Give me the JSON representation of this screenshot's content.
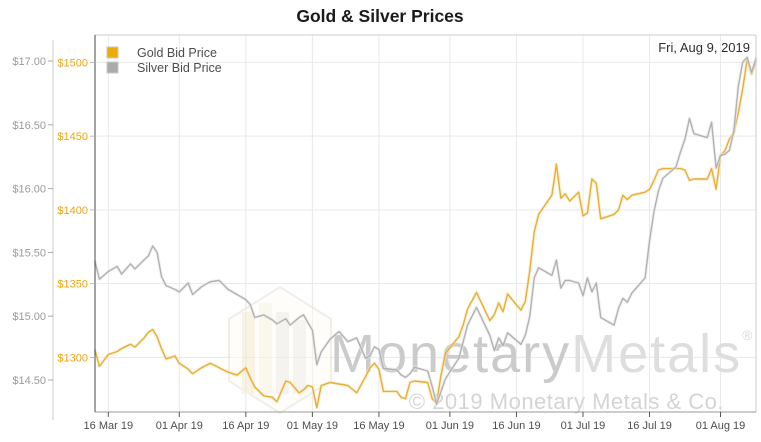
{
  "title": "Gold & Silver Prices",
  "date_label": "Fri, Aug 9, 2019",
  "legend": {
    "items": [
      {
        "label": "Gold Bid Price",
        "color": "#EDAB07"
      },
      {
        "label": "Silver Bid Price",
        "color": "#ABABAB"
      }
    ]
  },
  "watermark": {
    "brand_a": "Monetary",
    "brand_b": "Metals",
    "registered": "®",
    "copyright": "© 2019 Monetary Metals & Co.",
    "logo": "hexagon-ingot-mark"
  },
  "chart_data": {
    "type": "line",
    "title": "Gold & Silver Prices",
    "annotation": "Fri, Aug 9, 2019",
    "grid": {
      "horizontal": "gold-ticks",
      "vertical": "x-ticks",
      "color": "#e9e9e9"
    },
    "x_axis": {
      "unit": "days since 13 Mar 2019",
      "min": 0,
      "max": 149,
      "label_color": "#4d4d4d",
      "ticks": [
        {
          "day": 3,
          "label": "16 Mar 19"
        },
        {
          "day": 19,
          "label": "01 Apr 19"
        },
        {
          "day": 34,
          "label": "16 Apr 19"
        },
        {
          "day": 49,
          "label": "01 May 19"
        },
        {
          "day": 64,
          "label": "16 May 19"
        },
        {
          "day": 80,
          "label": "01 Jun 19"
        },
        {
          "day": 95,
          "label": "16 Jun 19"
        },
        {
          "day": 110,
          "label": "01 Jul 19"
        },
        {
          "day": 125,
          "label": "16 Jul 19"
        },
        {
          "day": 141,
          "label": "01 Aug 19"
        }
      ]
    },
    "gold_axis": {
      "side": "left-inner",
      "currency": "USD/oz",
      "min": 1263,
      "max": 1518.6,
      "label_color": "#EDA512",
      "ticks": [
        {
          "value": 1300,
          "label": "$1300"
        },
        {
          "value": 1350,
          "label": "$1350"
        },
        {
          "value": 1400,
          "label": "$1400"
        },
        {
          "value": 1450,
          "label": "$1450"
        },
        {
          "value": 1500,
          "label": "$1500"
        }
      ]
    },
    "silver_axis": {
      "side": "left-outer",
      "currency": "USD/oz",
      "min": 14.249,
      "max": 17.204,
      "label_color": "#9B9B9B",
      "ticks": [
        {
          "value": 14.5,
          "label": "$14.50"
        },
        {
          "value": 15.0,
          "label": "$15.00"
        },
        {
          "value": 15.5,
          "label": "$15.50"
        },
        {
          "value": 16.0,
          "label": "$16.00"
        },
        {
          "value": 16.5,
          "label": "$16.50"
        },
        {
          "value": 17.0,
          "label": "$17.00"
        }
      ]
    },
    "series": [
      {
        "name": "Gold Bid Price",
        "axis": "gold",
        "color": "#E8AE35",
        "halo": "#F6E7BE",
        "points": [
          [
            0,
            1305
          ],
          [
            1,
            1294
          ],
          [
            3,
            1302
          ],
          [
            5,
            1304
          ],
          [
            6,
            1306
          ],
          [
            8,
            1309
          ],
          [
            9,
            1307
          ],
          [
            11,
            1313
          ],
          [
            12,
            1317
          ],
          [
            13,
            1319
          ],
          [
            14,
            1314
          ],
          [
            15,
            1306
          ],
          [
            16,
            1299
          ],
          [
            18,
            1301
          ],
          [
            19,
            1296
          ],
          [
            21,
            1292
          ],
          [
            22,
            1289
          ],
          [
            24,
            1293
          ],
          [
            26,
            1296
          ],
          [
            28,
            1293
          ],
          [
            30,
            1290
          ],
          [
            32,
            1288
          ],
          [
            34,
            1293
          ],
          [
            35,
            1286
          ],
          [
            36,
            1280
          ],
          [
            38,
            1274
          ],
          [
            40,
            1273
          ],
          [
            41,
            1270
          ],
          [
            43,
            1284
          ],
          [
            44,
            1283
          ],
          [
            46,
            1276
          ],
          [
            47,
            1278
          ],
          [
            48,
            1281
          ],
          [
            49,
            1280
          ],
          [
            50,
            1266
          ],
          [
            51,
            1281
          ],
          [
            53,
            1283
          ],
          [
            55,
            1282
          ],
          [
            57,
            1281
          ],
          [
            59,
            1276
          ],
          [
            61,
            1287
          ],
          [
            62,
            1293
          ],
          [
            63,
            1296
          ],
          [
            64,
            1292
          ],
          [
            65,
            1277
          ],
          [
            68,
            1277
          ],
          [
            69,
            1273
          ],
          [
            70,
            1272
          ],
          [
            71,
            1283
          ],
          [
            72,
            1284
          ],
          [
            75,
            1283
          ],
          [
            76,
            1272
          ],
          [
            77,
            1269
          ],
          [
            78,
            1288
          ],
          [
            79,
            1303
          ],
          [
            82,
            1314
          ],
          [
            83,
            1322
          ],
          [
            84,
            1333
          ],
          [
            86,
            1344
          ],
          [
            89,
            1325
          ],
          [
            90,
            1329
          ],
          [
            91,
            1337
          ],
          [
            92,
            1331
          ],
          [
            93,
            1343
          ],
          [
            96,
            1332
          ],
          [
            97,
            1338
          ],
          [
            98,
            1359
          ],
          [
            99,
            1385
          ],
          [
            100,
            1397
          ],
          [
            103,
            1410
          ],
          [
            104,
            1431
          ],
          [
            105,
            1408
          ],
          [
            106,
            1411
          ],
          [
            107,
            1406
          ],
          [
            109,
            1412
          ],
          [
            110,
            1396
          ],
          [
            111,
            1398
          ],
          [
            112,
            1421
          ],
          [
            113,
            1418
          ],
          [
            114,
            1394
          ],
          [
            117,
            1397
          ],
          [
            118,
            1400
          ],
          [
            119,
            1410
          ],
          [
            120,
            1407
          ],
          [
            121,
            1410
          ],
          [
            124,
            1412
          ],
          [
            125,
            1414
          ],
          [
            126,
            1420
          ],
          [
            127,
            1427
          ],
          [
            128,
            1428
          ],
          [
            131,
            1428
          ],
          [
            132,
            1428
          ],
          [
            133,
            1427
          ],
          [
            134,
            1420
          ],
          [
            135,
            1421
          ],
          [
            138,
            1421
          ],
          [
            139,
            1428
          ],
          [
            140,
            1414
          ],
          [
            141,
            1437
          ],
          [
            142,
            1440
          ],
          [
            143,
            1448
          ],
          [
            144,
            1452
          ],
          [
            145,
            1466
          ],
          [
            146,
            1482
          ],
          [
            147,
            1502
          ],
          [
            148,
            1492
          ],
          [
            149,
            1501
          ]
        ]
      },
      {
        "name": "Silver Bid Price",
        "axis": "silver",
        "color": "#B2B2B2",
        "halo": "#E9E9E9",
        "points": [
          [
            0,
            15.43
          ],
          [
            1,
            15.29
          ],
          [
            3,
            15.35
          ],
          [
            5,
            15.39
          ],
          [
            6,
            15.33
          ],
          [
            8,
            15.41
          ],
          [
            9,
            15.37
          ],
          [
            11,
            15.44
          ],
          [
            12,
            15.47
          ],
          [
            13,
            15.55
          ],
          [
            14,
            15.5
          ],
          [
            15,
            15.31
          ],
          [
            16,
            15.24
          ],
          [
            18,
            15.21
          ],
          [
            19,
            15.19
          ],
          [
            21,
            15.26
          ],
          [
            22,
            15.17
          ],
          [
            24,
            15.23
          ],
          [
            26,
            15.27
          ],
          [
            28,
            15.28
          ],
          [
            30,
            15.21
          ],
          [
            32,
            15.17
          ],
          [
            34,
            15.13
          ],
          [
            35,
            15.09
          ],
          [
            36,
            14.99
          ],
          [
            38,
            15.01
          ],
          [
            40,
            14.97
          ],
          [
            41,
            14.94
          ],
          [
            43,
            14.98
          ],
          [
            44,
            14.93
          ],
          [
            46,
            14.99
          ],
          [
            47,
            15.01
          ],
          [
            48,
            14.95
          ],
          [
            49,
            14.89
          ],
          [
            50,
            14.62
          ],
          [
            51,
            14.72
          ],
          [
            53,
            14.82
          ],
          [
            55,
            14.88
          ],
          [
            57,
            14.8
          ],
          [
            59,
            14.83
          ],
          [
            61,
            14.67
          ],
          [
            62,
            14.69
          ],
          [
            63,
            14.76
          ],
          [
            64,
            14.74
          ],
          [
            65,
            14.59
          ],
          [
            68,
            14.58
          ],
          [
            69,
            14.54
          ],
          [
            70,
            14.52
          ],
          [
            71,
            14.55
          ],
          [
            72,
            14.6
          ],
          [
            75,
            14.57
          ],
          [
            76,
            14.45
          ],
          [
            77,
            14.31
          ],
          [
            78,
            14.41
          ],
          [
            79,
            14.51
          ],
          [
            82,
            14.67
          ],
          [
            83,
            14.8
          ],
          [
            84,
            14.93
          ],
          [
            86,
            15.07
          ],
          [
            89,
            14.85
          ],
          [
            90,
            14.73
          ],
          [
            91,
            14.83
          ],
          [
            92,
            14.77
          ],
          [
            93,
            14.87
          ],
          [
            96,
            14.78
          ],
          [
            97,
            14.85
          ],
          [
            98,
            15.0
          ],
          [
            99,
            15.3
          ],
          [
            100,
            15.38
          ],
          [
            103,
            15.32
          ],
          [
            104,
            15.44
          ],
          [
            105,
            15.22
          ],
          [
            106,
            15.28
          ],
          [
            107,
            15.28
          ],
          [
            109,
            15.26
          ],
          [
            110,
            15.16
          ],
          [
            111,
            15.3
          ],
          [
            112,
            15.19
          ],
          [
            113,
            15.26
          ],
          [
            114,
            14.99
          ],
          [
            117,
            14.93
          ],
          [
            118,
            15.06
          ],
          [
            119,
            15.14
          ],
          [
            120,
            15.11
          ],
          [
            121,
            15.18
          ],
          [
            124,
            15.3
          ],
          [
            125,
            15.59
          ],
          [
            126,
            15.82
          ],
          [
            127,
            15.98
          ],
          [
            128,
            16.08
          ],
          [
            131,
            16.17
          ],
          [
            132,
            16.29
          ],
          [
            133,
            16.39
          ],
          [
            134,
            16.55
          ],
          [
            135,
            16.43
          ],
          [
            138,
            16.4
          ],
          [
            139,
            16.52
          ],
          [
            140,
            16.16
          ],
          [
            141,
            16.26
          ],
          [
            142,
            16.27
          ],
          [
            143,
            16.3
          ],
          [
            144,
            16.45
          ],
          [
            145,
            16.8
          ],
          [
            146,
            16.99
          ],
          [
            147,
            17.03
          ],
          [
            148,
            16.91
          ],
          [
            149,
            17.02
          ]
        ]
      }
    ]
  }
}
